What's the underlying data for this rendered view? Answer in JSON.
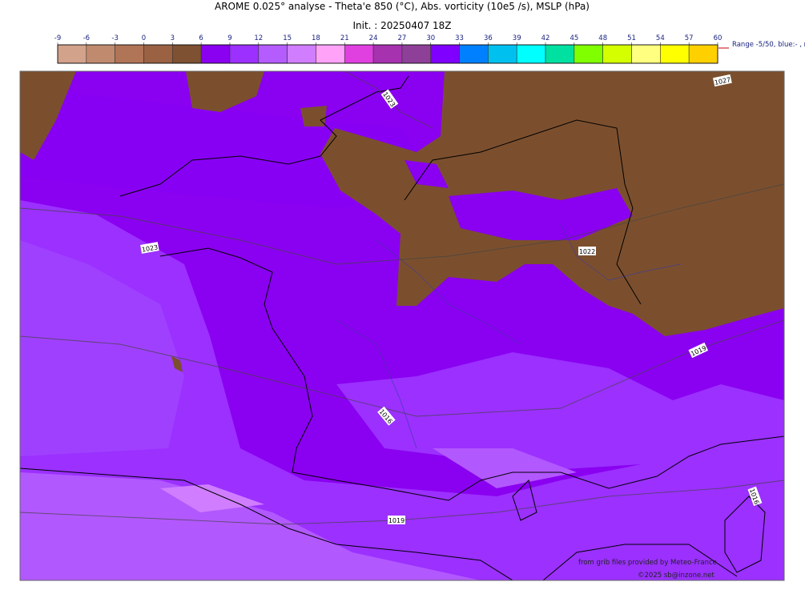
{
  "header": {
    "title": "AROME 0.025° analyse - Theta'e 850 (°C), Abs. vorticity (10e5 /s), MSLP (hPa)",
    "subtitle": "Init. : 20250407 18Z"
  },
  "colorbar": {
    "ticks": [
      -9,
      -6,
      -3,
      0,
      3,
      6,
      9,
      12,
      15,
      18,
      21,
      24,
      27,
      30,
      33,
      36,
      39,
      42,
      45,
      48,
      51,
      54,
      57,
      60
    ],
    "colors": [
      "#d2a28b",
      "#c08a6e",
      "#b07456",
      "#9a6142",
      "#7e5132",
      "#8a00f0",
      "#9b30ff",
      "#b55cff",
      "#d07eff",
      "#ffa2f8",
      "#e040e0",
      "#a632b0",
      "#8e4098",
      "#8000ff",
      "#0080ff",
      "#00c0f0",
      "#00ffff",
      "#00e0a0",
      "#80ff00",
      "#d4ff00",
      "#ffff80",
      "#ffff00",
      "#ffd000"
    ],
    "range_note": "Range -5/50, blue:- , r"
  },
  "map": {
    "isobar_labels": [
      "1023",
      "1023",
      "1022",
      "1027",
      "1019",
      "1016",
      "1019",
      "1016"
    ],
    "credits": [
      "from grib files provided by Meteo-France",
      "©2025 sb@inzone.net"
    ]
  }
}
